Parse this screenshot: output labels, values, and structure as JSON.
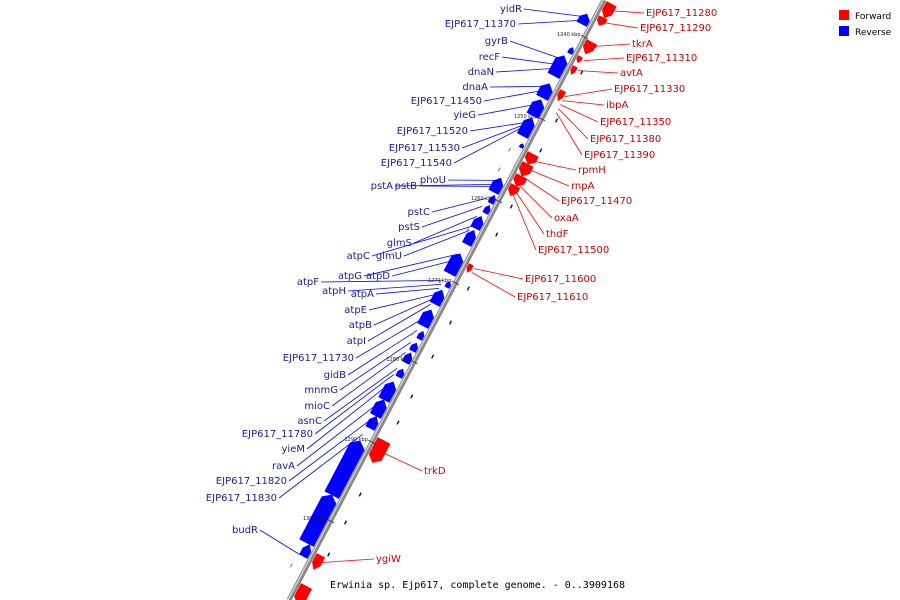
{
  "caption": "Erwinia sp. Ejp617, complete genome. - 0..3909168",
  "legend": [
    {
      "label": "Forward",
      "color": "#ff0000"
    },
    {
      "label": "Reverse",
      "color": "#0000ff"
    }
  ],
  "ticks": [
    "1240 kbp",
    "1250 kbp",
    "1260 kbp",
    "1270 kbp",
    "1280 kbp",
    "1290 kbp",
    "1300 kbp"
  ],
  "forward_genes": [
    "EJP617_11280",
    "EJP617_11290",
    "tkrA",
    "EJP617_11310",
    "avtA",
    "EJP617_11330",
    "ibpA",
    "EJP617_11350",
    "EJP617_11380",
    "EJP617_11390",
    "rpmH",
    "rnpA",
    "EJP617_11470",
    "oxaA",
    "thdF",
    "EJP617_11500",
    "EJP617_11600",
    "EJP617_11610",
    "trkD",
    "ygiW"
  ],
  "reverse_genes": [
    "yidR",
    "EJP617_11370",
    "gyrB",
    "recF",
    "dnaN",
    "dnaA",
    "EJP617_11450",
    "yieG",
    "EJP617_11520",
    "EJP617_11530",
    "EJP617_11540",
    "phoU",
    "pstA",
    "pstB",
    "pstC",
    "pstS",
    "glmS",
    "atpC",
    "glmU",
    "atpG",
    "atpD",
    "atpF",
    "atpH",
    "atpA",
    "atpE",
    "atpB",
    "atpI",
    "EJP617_11730",
    "gidB",
    "mnmG",
    "mioC",
    "asnC",
    "EJP617_11780",
    "yieM",
    "ravA",
    "EJP617_11820",
    "EJP617_11830",
    "budR"
  ]
}
